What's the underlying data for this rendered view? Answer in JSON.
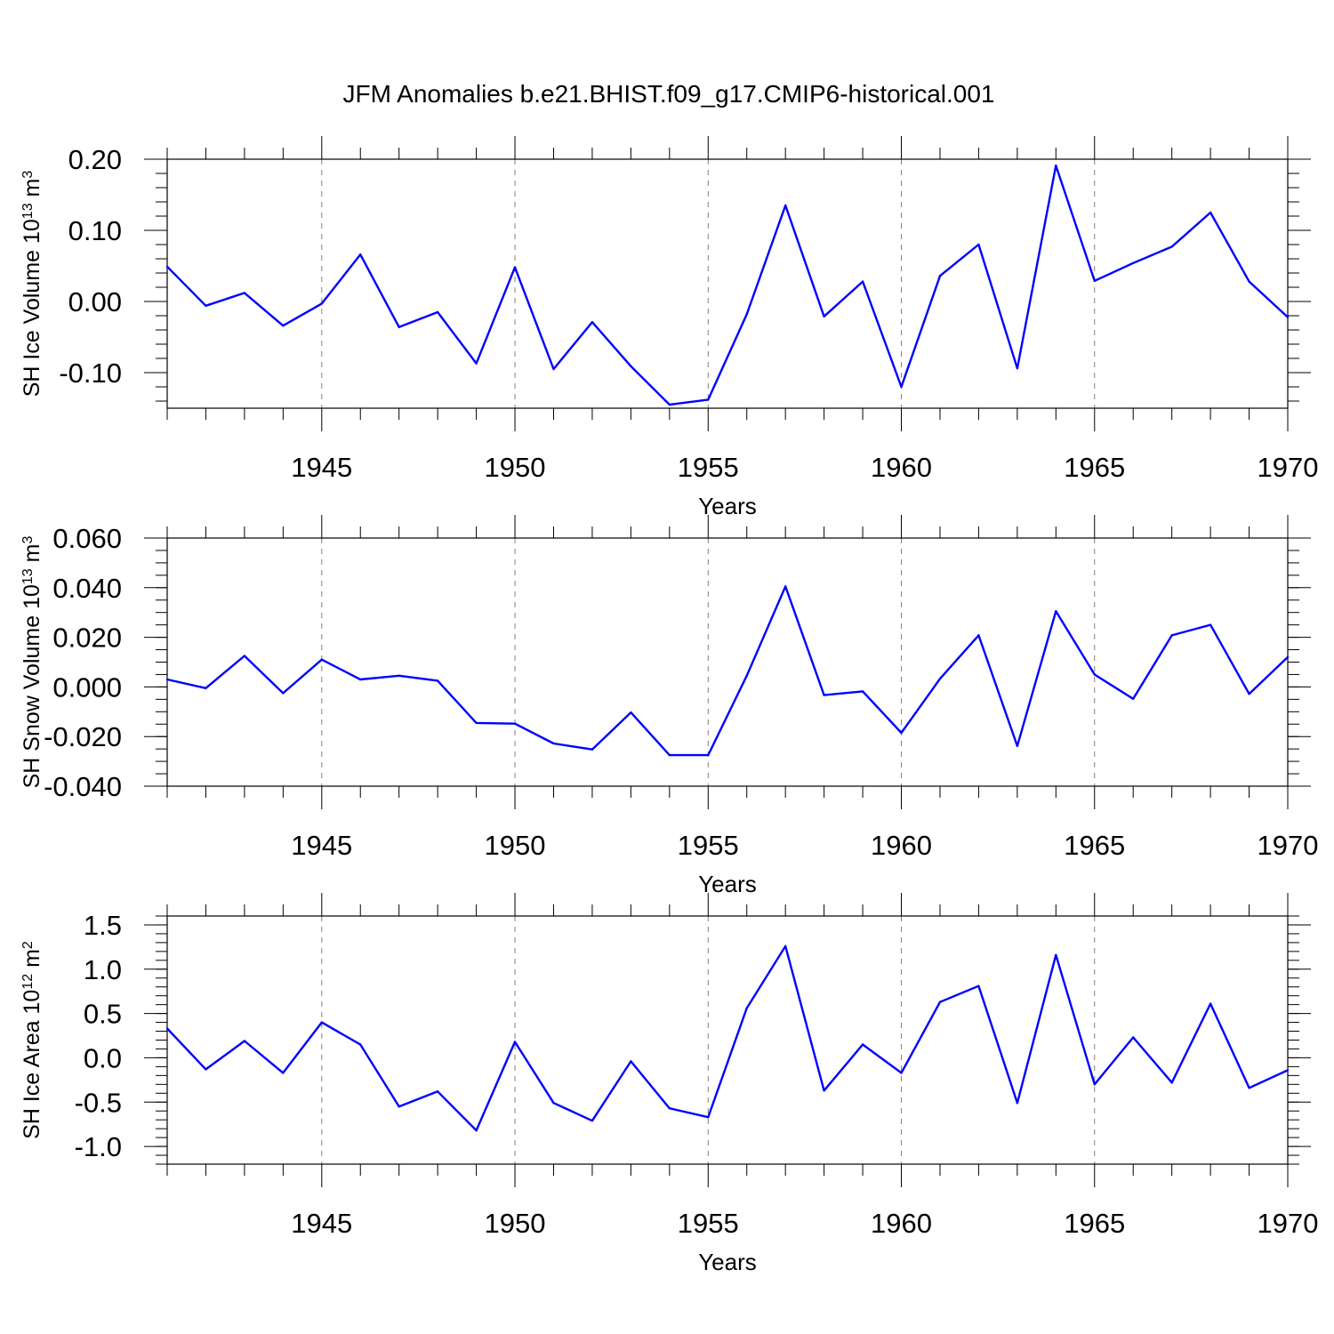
{
  "figure": {
    "title": "JFM Anomalies b.e21.BHIST.f09_g17.CMIP6-historical.001",
    "line_color": "#0000ff",
    "axis_color": "#000000",
    "grid_color": "#808080"
  },
  "chart_data": [
    {
      "type": "line",
      "title": "",
      "xlabel": "Years",
      "ylabel": "SH Ice Volume 10",
      "ylabel_exp": "13",
      "ylabel_unit": " m",
      "ylabel_unit_exp": "3",
      "xlim": [
        1941,
        1970
      ],
      "ylim": [
        -0.15,
        0.2
      ],
      "yticks": [
        -0.1,
        0.0,
        0.1,
        0.2
      ],
      "ytick_labels": [
        "-0.10",
        "0.00",
        "0.10",
        "0.20"
      ],
      "yminor_step": 0.02,
      "xticks": [
        1945,
        1950,
        1955,
        1960,
        1965,
        1970
      ],
      "xtick_labels": [
        "1945",
        "1950",
        "1955",
        "1960",
        "1965",
        "1970"
      ],
      "grid": "vertical dashed at major x ticks",
      "x": [
        1941,
        1942,
        1943,
        1944,
        1945,
        1946,
        1947,
        1948,
        1949,
        1950,
        1951,
        1952,
        1953,
        1954,
        1955,
        1956,
        1957,
        1958,
        1959,
        1960,
        1961,
        1962,
        1963,
        1964,
        1965,
        1966,
        1967,
        1968,
        1969,
        1970
      ],
      "values": [
        0.049,
        -0.006,
        0.012,
        -0.034,
        -0.003,
        0.066,
        -0.036,
        -0.015,
        -0.087,
        0.048,
        -0.095,
        -0.029,
        -0.091,
        -0.145,
        -0.138,
        -0.018,
        0.135,
        -0.021,
        0.028,
        -0.12,
        0.036,
        0.08,
        -0.094,
        0.191,
        0.029,
        0.054,
        0.077,
        0.125,
        0.028,
        -0.022
      ]
    },
    {
      "type": "line",
      "title": "",
      "xlabel": "Years",
      "ylabel": "SH Snow Volume 10",
      "ylabel_exp": "13",
      "ylabel_unit": " m",
      "ylabel_unit_exp": "3",
      "xlim": [
        1941,
        1970
      ],
      "ylim": [
        -0.04,
        0.06
      ],
      "yticks": [
        -0.04,
        -0.02,
        0.0,
        0.02,
        0.04,
        0.06
      ],
      "ytick_labels": [
        "-0.040",
        "-0.020",
        "0.000",
        "0.020",
        "0.040",
        "0.060"
      ],
      "yminor_step": 0.005,
      "xticks": [
        1945,
        1950,
        1955,
        1960,
        1965,
        1970
      ],
      "xtick_labels": [
        "1945",
        "1950",
        "1955",
        "1960",
        "1965",
        "1970"
      ],
      "grid": "vertical dashed at major x ticks",
      "x": [
        1941,
        1942,
        1943,
        1944,
        1945,
        1946,
        1947,
        1948,
        1949,
        1950,
        1951,
        1952,
        1953,
        1954,
        1955,
        1956,
        1957,
        1958,
        1959,
        1960,
        1961,
        1962,
        1963,
        1964,
        1965,
        1966,
        1967,
        1968,
        1969,
        1970
      ],
      "values": [
        0.003,
        -0.0005,
        0.0125,
        -0.0025,
        0.011,
        0.003,
        0.0045,
        0.0025,
        -0.0145,
        -0.0148,
        -0.0228,
        -0.0252,
        -0.0103,
        -0.0275,
        -0.0275,
        0.0045,
        0.0405,
        -0.0033,
        -0.0018,
        -0.0185,
        0.0033,
        0.0208,
        -0.0238,
        0.0305,
        0.005,
        -0.0048,
        0.0208,
        0.025,
        -0.0028,
        0.012
      ]
    },
    {
      "type": "line",
      "title": "",
      "xlabel": "Years",
      "ylabel": "SH Ice Area 10",
      "ylabel_exp": "12",
      "ylabel_unit": " m",
      "ylabel_unit_exp": "2",
      "xlim": [
        1941,
        1970
      ],
      "ylim": [
        -1.2,
        1.6
      ],
      "yticks": [
        -1.0,
        -0.5,
        0.0,
        0.5,
        1.0,
        1.5
      ],
      "ytick_labels": [
        "-1.0",
        "-0.5",
        "0.0",
        "0.5",
        "1.0",
        "1.5"
      ],
      "yminor_step": 0.1,
      "xticks": [
        1945,
        1950,
        1955,
        1960,
        1965,
        1970
      ],
      "xtick_labels": [
        "1945",
        "1950",
        "1955",
        "1960",
        "1965",
        "1970"
      ],
      "grid": "vertical dashed at major x ticks",
      "x": [
        1941,
        1942,
        1943,
        1944,
        1945,
        1946,
        1947,
        1948,
        1949,
        1950,
        1951,
        1952,
        1953,
        1954,
        1955,
        1956,
        1957,
        1958,
        1959,
        1960,
        1961,
        1962,
        1963,
        1964,
        1965,
        1966,
        1967,
        1968,
        1969,
        1970
      ],
      "values": [
        0.33,
        -0.13,
        0.19,
        -0.17,
        0.4,
        0.15,
        -0.55,
        -0.38,
        -0.82,
        0.18,
        -0.51,
        -0.71,
        -0.04,
        -0.57,
        -0.67,
        0.56,
        1.26,
        -0.37,
        0.15,
        -0.17,
        0.63,
        0.81,
        -0.51,
        1.16,
        -0.3,
        0.23,
        -0.28,
        0.61,
        -0.34,
        -0.14
      ]
    }
  ]
}
